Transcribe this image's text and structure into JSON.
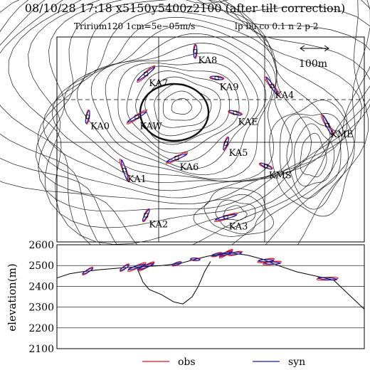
{
  "title": "08/10/28 17:18   x5150y5400z2100 (after tilt correction)",
  "subtitle_left": "Tririum120   1cm=5e−05m/s",
  "subtitle_right": "lp bu co 0.1 n 2 p 2",
  "scale_bar_label": "100m",
  "map_axes": {
    "xlim": [
      0,
      100
    ],
    "ylim": [
      0,
      100
    ],
    "grid_x": [
      33,
      68
    ],
    "grid_y": [
      56
    ]
  },
  "stations": [
    {
      "name": "KA8",
      "x": 45,
      "y": 93
    },
    {
      "name": "KA7",
      "x": 29,
      "y": 82
    },
    {
      "name": "KA9",
      "x": 52,
      "y": 80
    },
    {
      "name": "KA4",
      "x": 70,
      "y": 76
    },
    {
      "name": "KA0",
      "x": 10,
      "y": 61
    },
    {
      "name": "KAW",
      "x": 26,
      "y": 61
    },
    {
      "name": "KAE",
      "x": 58,
      "y": 63
    },
    {
      "name": "KME",
      "x": 88,
      "y": 57
    },
    {
      "name": "KA5",
      "x": 55,
      "y": 48
    },
    {
      "name": "KA6",
      "x": 39,
      "y": 41
    },
    {
      "name": "KMS",
      "x": 68,
      "y": 37
    },
    {
      "name": "KA1",
      "x": 22,
      "y": 35
    },
    {
      "name": "KA2",
      "x": 29,
      "y": 13
    },
    {
      "name": "KA3",
      "x": 55,
      "y": 12
    }
  ],
  "profile": {
    "ylabel": "elevation(m)",
    "yticks": [
      "2600",
      "2500",
      "2400",
      "2300",
      "2200",
      "2100"
    ],
    "ylim": [
      2100,
      2600
    ],
    "surface_x": [
      0,
      4,
      8,
      14,
      22,
      28,
      34,
      40,
      45,
      49,
      53,
      57,
      62,
      67,
      72,
      78,
      84,
      90,
      95,
      100
    ],
    "surface_elev": [
      2440,
      2460,
      2470,
      2480,
      2490,
      2495,
      2500,
      2510,
      2530,
      2545,
      2555,
      2560,
      2550,
      2530,
      2500,
      2470,
      2450,
      2430,
      2360,
      2290
    ],
    "crater_x": [
      26,
      28,
      30,
      34,
      38,
      41,
      44,
      46,
      48,
      50
    ],
    "crater_elev": [
      2490,
      2420,
      2385,
      2360,
      2325,
      2315,
      2350,
      2400,
      2470,
      2520
    ]
  },
  "legend": {
    "obs": "obs",
    "syn": "syn"
  },
  "colors": {
    "obs": "#e8141b",
    "syn": "#1a1aa8",
    "contour": "#1a1a1a"
  }
}
